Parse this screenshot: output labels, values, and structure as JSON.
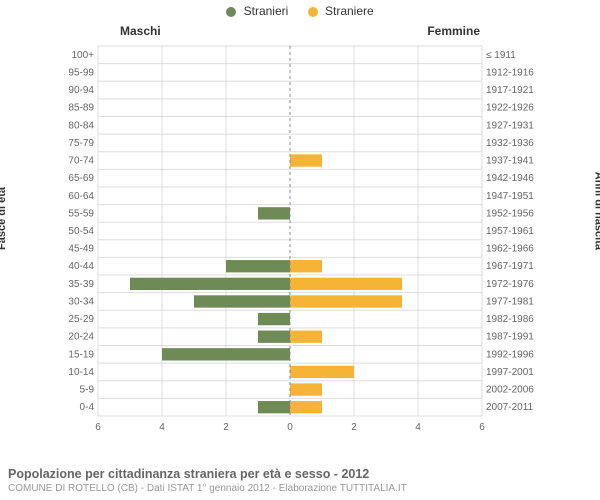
{
  "legend": {
    "male": {
      "label": "Stranieri",
      "color": "#6e8b55"
    },
    "female": {
      "label": "Straniere",
      "color": "#f5b436"
    }
  },
  "column_titles": {
    "male": "Maschi",
    "female": "Femmine"
  },
  "axis_left_label": "Fasce di età",
  "axis_right_label": "Anni di nascita",
  "footer": {
    "title": "Popolazione per cittadinanza straniera per età e sesso - 2012",
    "subtitle": "COMUNE DI ROTELLO (CB) - Dati ISTAT 1° gennaio 2012 - Elaborazione TUTTITALIA.IT"
  },
  "chart": {
    "type": "pyramid-bar",
    "background": "#ffffff",
    "grid_color": "#dddddd",
    "baseline_color": "#888888",
    "male_color": "#6e8b55",
    "female_color": "#f5b436",
    "bar_height_ratio": 0.7,
    "x_max": 6,
    "x_ticks": [
      0,
      2,
      4,
      6
    ],
    "rows": [
      {
        "age": "100+",
        "birth": "≤ 1911",
        "m": 0,
        "f": 0
      },
      {
        "age": "95-99",
        "birth": "1912-1916",
        "m": 0,
        "f": 0
      },
      {
        "age": "90-94",
        "birth": "1917-1921",
        "m": 0,
        "f": 0
      },
      {
        "age": "85-89",
        "birth": "1922-1926",
        "m": 0,
        "f": 0
      },
      {
        "age": "80-84",
        "birth": "1927-1931",
        "m": 0,
        "f": 0
      },
      {
        "age": "75-79",
        "birth": "1932-1936",
        "m": 0,
        "f": 0
      },
      {
        "age": "70-74",
        "birth": "1937-1941",
        "m": 0,
        "f": 1
      },
      {
        "age": "65-69",
        "birth": "1942-1946",
        "m": 0,
        "f": 0
      },
      {
        "age": "60-64",
        "birth": "1947-1951",
        "m": 0,
        "f": 0
      },
      {
        "age": "55-59",
        "birth": "1952-1956",
        "m": 1,
        "f": 0
      },
      {
        "age": "50-54",
        "birth": "1957-1961",
        "m": 0,
        "f": 0
      },
      {
        "age": "45-49",
        "birth": "1962-1966",
        "m": 0,
        "f": 0
      },
      {
        "age": "40-44",
        "birth": "1967-1971",
        "m": 2,
        "f": 1
      },
      {
        "age": "35-39",
        "birth": "1972-1976",
        "m": 5,
        "f": 3.5
      },
      {
        "age": "30-34",
        "birth": "1977-1981",
        "m": 3,
        "f": 3.5
      },
      {
        "age": "25-29",
        "birth": "1982-1986",
        "m": 1,
        "f": 0
      },
      {
        "age": "20-24",
        "birth": "1987-1991",
        "m": 1,
        "f": 1
      },
      {
        "age": "15-19",
        "birth": "1992-1996",
        "m": 4,
        "f": 0
      },
      {
        "age": "10-14",
        "birth": "1997-2001",
        "m": 0,
        "f": 2
      },
      {
        "age": "5-9",
        "birth": "2002-2006",
        "m": 0,
        "f": 1
      },
      {
        "age": "0-4",
        "birth": "2007-2011",
        "m": 1,
        "f": 1
      }
    ]
  }
}
